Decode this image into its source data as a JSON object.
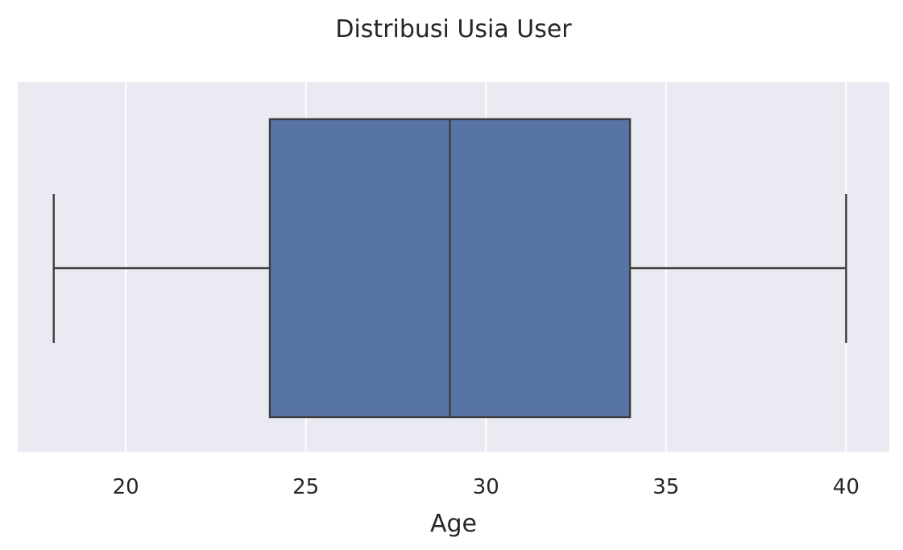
{
  "chart_data": {
    "type": "box",
    "title": "Distribusi Usia User",
    "xlabel": "Age",
    "ylabel": "",
    "xlim": [
      17,
      41.2
    ],
    "xticks": [
      20,
      25,
      30,
      35,
      40
    ],
    "xtick_labels": [
      "20",
      "25",
      "30",
      "35",
      "40"
    ],
    "grid": true,
    "orientation": "horizontal",
    "box": {
      "min": 18,
      "q1": 24,
      "median": 29,
      "q3": 34,
      "max": 40
    }
  },
  "colors": {
    "background": "#eaeaf2",
    "grid": "#ffffff",
    "box_fill": "#5874a4",
    "line": "#3d3d3d",
    "text": "#262626"
  }
}
